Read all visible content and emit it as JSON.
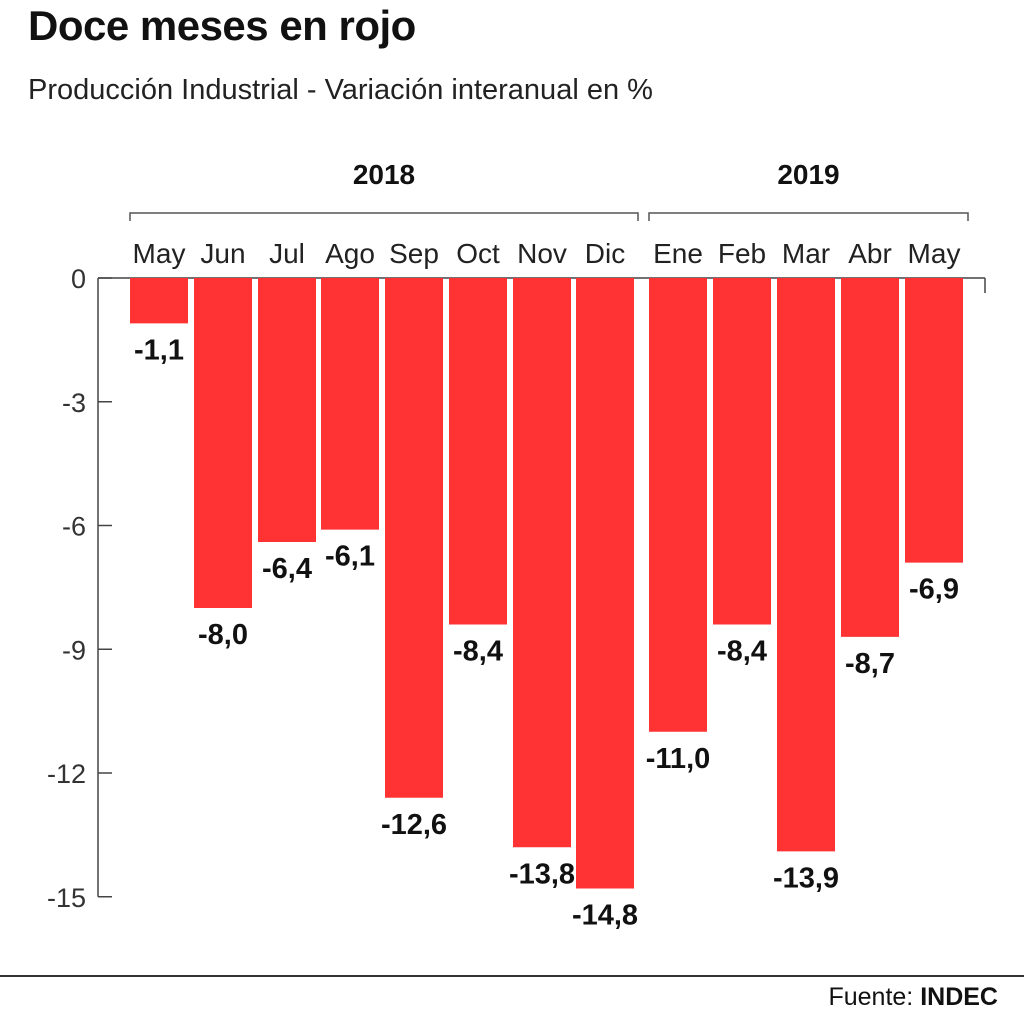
{
  "title": "Doce meses en rojo",
  "subtitle": "Producción Industrial - Variación interanual en %",
  "source": {
    "label": "Fuente:",
    "value": "INDEC"
  },
  "chart_data": {
    "type": "bar",
    "bar_color": "#ff3333",
    "year_groups": [
      {
        "label": "2018",
        "start": 0,
        "end": 7
      },
      {
        "label": "2019",
        "start": 8,
        "end": 12
      }
    ],
    "categories": [
      "May",
      "Jun",
      "Jul",
      "Ago",
      "Sep",
      "Oct",
      "Nov",
      "Dic",
      "Ene",
      "Feb",
      "Mar",
      "Abr",
      "May"
    ],
    "values": [
      -1.1,
      -8.0,
      -6.4,
      -6.1,
      -12.6,
      -8.4,
      -13.8,
      -14.8,
      -11.0,
      -8.4,
      -13.9,
      -8.7,
      -6.9
    ],
    "value_labels": [
      "-1,1",
      "-8,0",
      "-6,4",
      "-6,1",
      "-12,6",
      "-8,4",
      "-13,8",
      "-14,8",
      "-11,0",
      "-8,4",
      "-13,9",
      "-8,7",
      "-6,9"
    ],
    "yticks": [
      0,
      -3,
      -6,
      -9,
      -12,
      -15
    ],
    "ytick_labels": [
      "0",
      "-3",
      "-6",
      "-9",
      "-12",
      "-15"
    ],
    "ylim": [
      -15,
      0
    ],
    "grid": false
  }
}
